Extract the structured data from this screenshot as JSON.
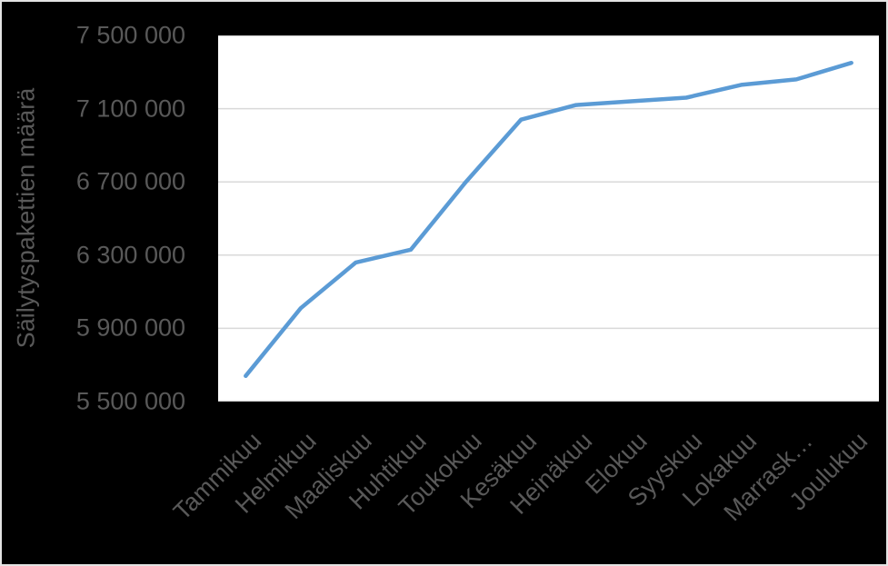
{
  "chart_data": {
    "type": "line",
    "title": "",
    "xlabel": "",
    "ylabel": "Säilytyspakettien määrä",
    "categories": [
      "Tammikuu",
      "Helmikuu",
      "Maaliskuu",
      "Huhtikuu",
      "Toukokuu",
      "Kesäkuu",
      "Heinäkuu",
      "Elokuu",
      "Syyskuu",
      "Lokakuu",
      "Marraskuu",
      "Joulukuu"
    ],
    "x_tick_labels": [
      "Tammikuu",
      "Helmikuu",
      "Maaliskuu",
      "Huhtikuu",
      "Toukokuu",
      "Kesäkuu",
      "Heinäkuu",
      "Elokuu",
      "Syyskuu",
      "Lokakuu",
      "Marrask…",
      "Joulukuu"
    ],
    "series": [
      {
        "name": "Säilytyspakettien määrä",
        "values": [
          5640000,
          6010000,
          6260000,
          6330000,
          6700000,
          7040000,
          7120000,
          7140000,
          7160000,
          7230000,
          7260000,
          7350000
        ]
      }
    ],
    "ylim": [
      5500000,
      7500000
    ],
    "y_tick_step": 400000,
    "y_tick_values": [
      5500000,
      5900000,
      6300000,
      6700000,
      7100000,
      7500000
    ],
    "y_tick_labels": [
      "5 500 000",
      "5 900 000",
      "6 300 000",
      "6 700 000",
      "7 100 000",
      "7 500 000"
    ],
    "grid": true,
    "legend": false,
    "colors": {
      "line": "#5B9BD5",
      "grid": "#D9D9D9",
      "axis_text": "#595959",
      "plot_bg": "#FFFFFF",
      "figure_bg": "#000000"
    }
  }
}
